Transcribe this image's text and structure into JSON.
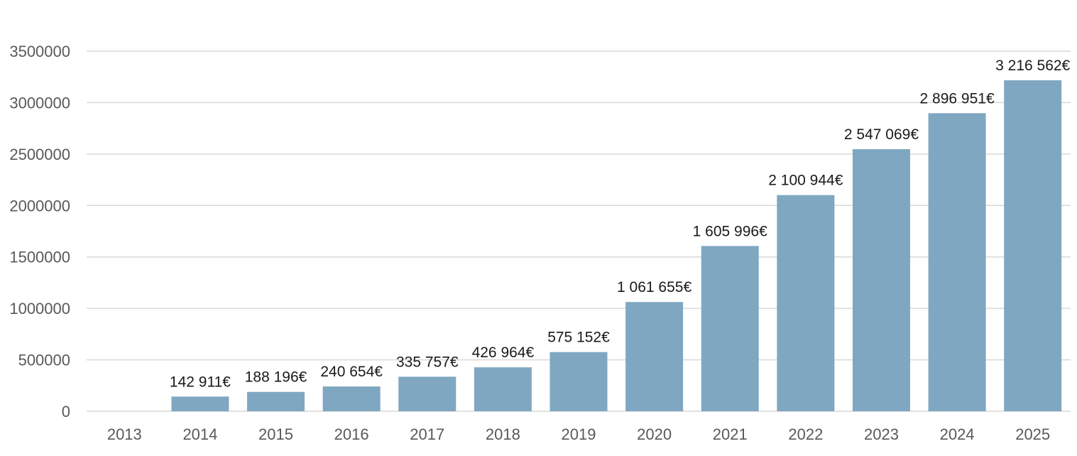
{
  "chart_data": {
    "type": "bar",
    "categories": [
      "2013",
      "2014",
      "2015",
      "2016",
      "2017",
      "2018",
      "2019",
      "2020",
      "2021",
      "2022",
      "2023",
      "2024",
      "2025"
    ],
    "values": [
      null,
      142911,
      188196,
      240654,
      335757,
      426964,
      575152,
      1061655,
      1605996,
      2100944,
      2547069,
      2896951,
      3216562
    ],
    "data_labels": [
      "",
      "142 911€",
      "188 196€",
      "240 654€",
      "335 757€",
      "426 964€",
      "575 152€",
      "1 061 655€",
      "1 605 996€",
      "2 100 944€",
      "2 547 069€",
      "2 896 951€",
      "3 216 562€"
    ],
    "y_ticks": [
      "0",
      "500000",
      "1000000",
      "1500000",
      "2000000",
      "2500000",
      "3000000",
      "3500000"
    ],
    "ylim": [
      0,
      3500000
    ],
    "title": "",
    "xlabel": "",
    "ylabel": "",
    "grid": true,
    "legend": "none",
    "bar_color": "#7fa7c2"
  }
}
